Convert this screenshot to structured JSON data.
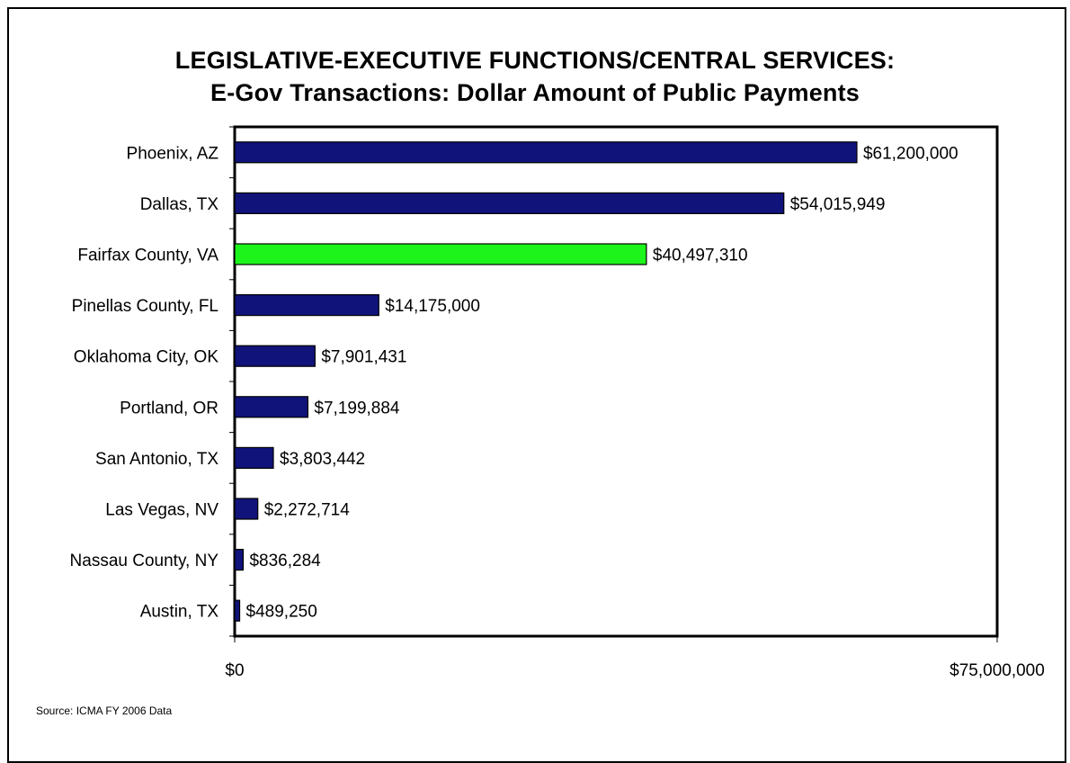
{
  "chart_data": {
    "type": "bar",
    "orientation": "horizontal",
    "title": "LEGISLATIVE-EXECUTIVE FUNCTIONS/CENTRAL SERVICES:",
    "subtitle": "E-Gov Transactions: Dollar Amount of Public Payments",
    "categories": [
      "Phoenix, AZ",
      "Dallas, TX",
      "Fairfax County, VA",
      "Pinellas County, FL",
      "Oklahoma City, OK",
      "Portland, OR",
      "San Antonio, TX",
      "Las Vegas, NV",
      "Nassau County, NY",
      "Austin, TX"
    ],
    "values": [
      61200000,
      54015949,
      40497310,
      14175000,
      7901431,
      7199884,
      3803442,
      2272714,
      836284,
      489250
    ],
    "value_labels": [
      "$61,200,000",
      "$54,015,949",
      "$40,497,310",
      "$14,175,000",
      "$7,901,431",
      "$7,199,884",
      "$3,803,442",
      "$2,272,714",
      "$836,284",
      "$489,250"
    ],
    "highlight": "Fairfax County, VA",
    "xlim": [
      0,
      75000000
    ],
    "x_tick_labels": [
      "$0",
      "$75,000,000"
    ],
    "colors": {
      "bar": "#10137a",
      "highlight": "#1cf41c"
    },
    "grid": false,
    "legend": "none"
  },
  "source": "Source: ICMA  FY 2006 Data"
}
